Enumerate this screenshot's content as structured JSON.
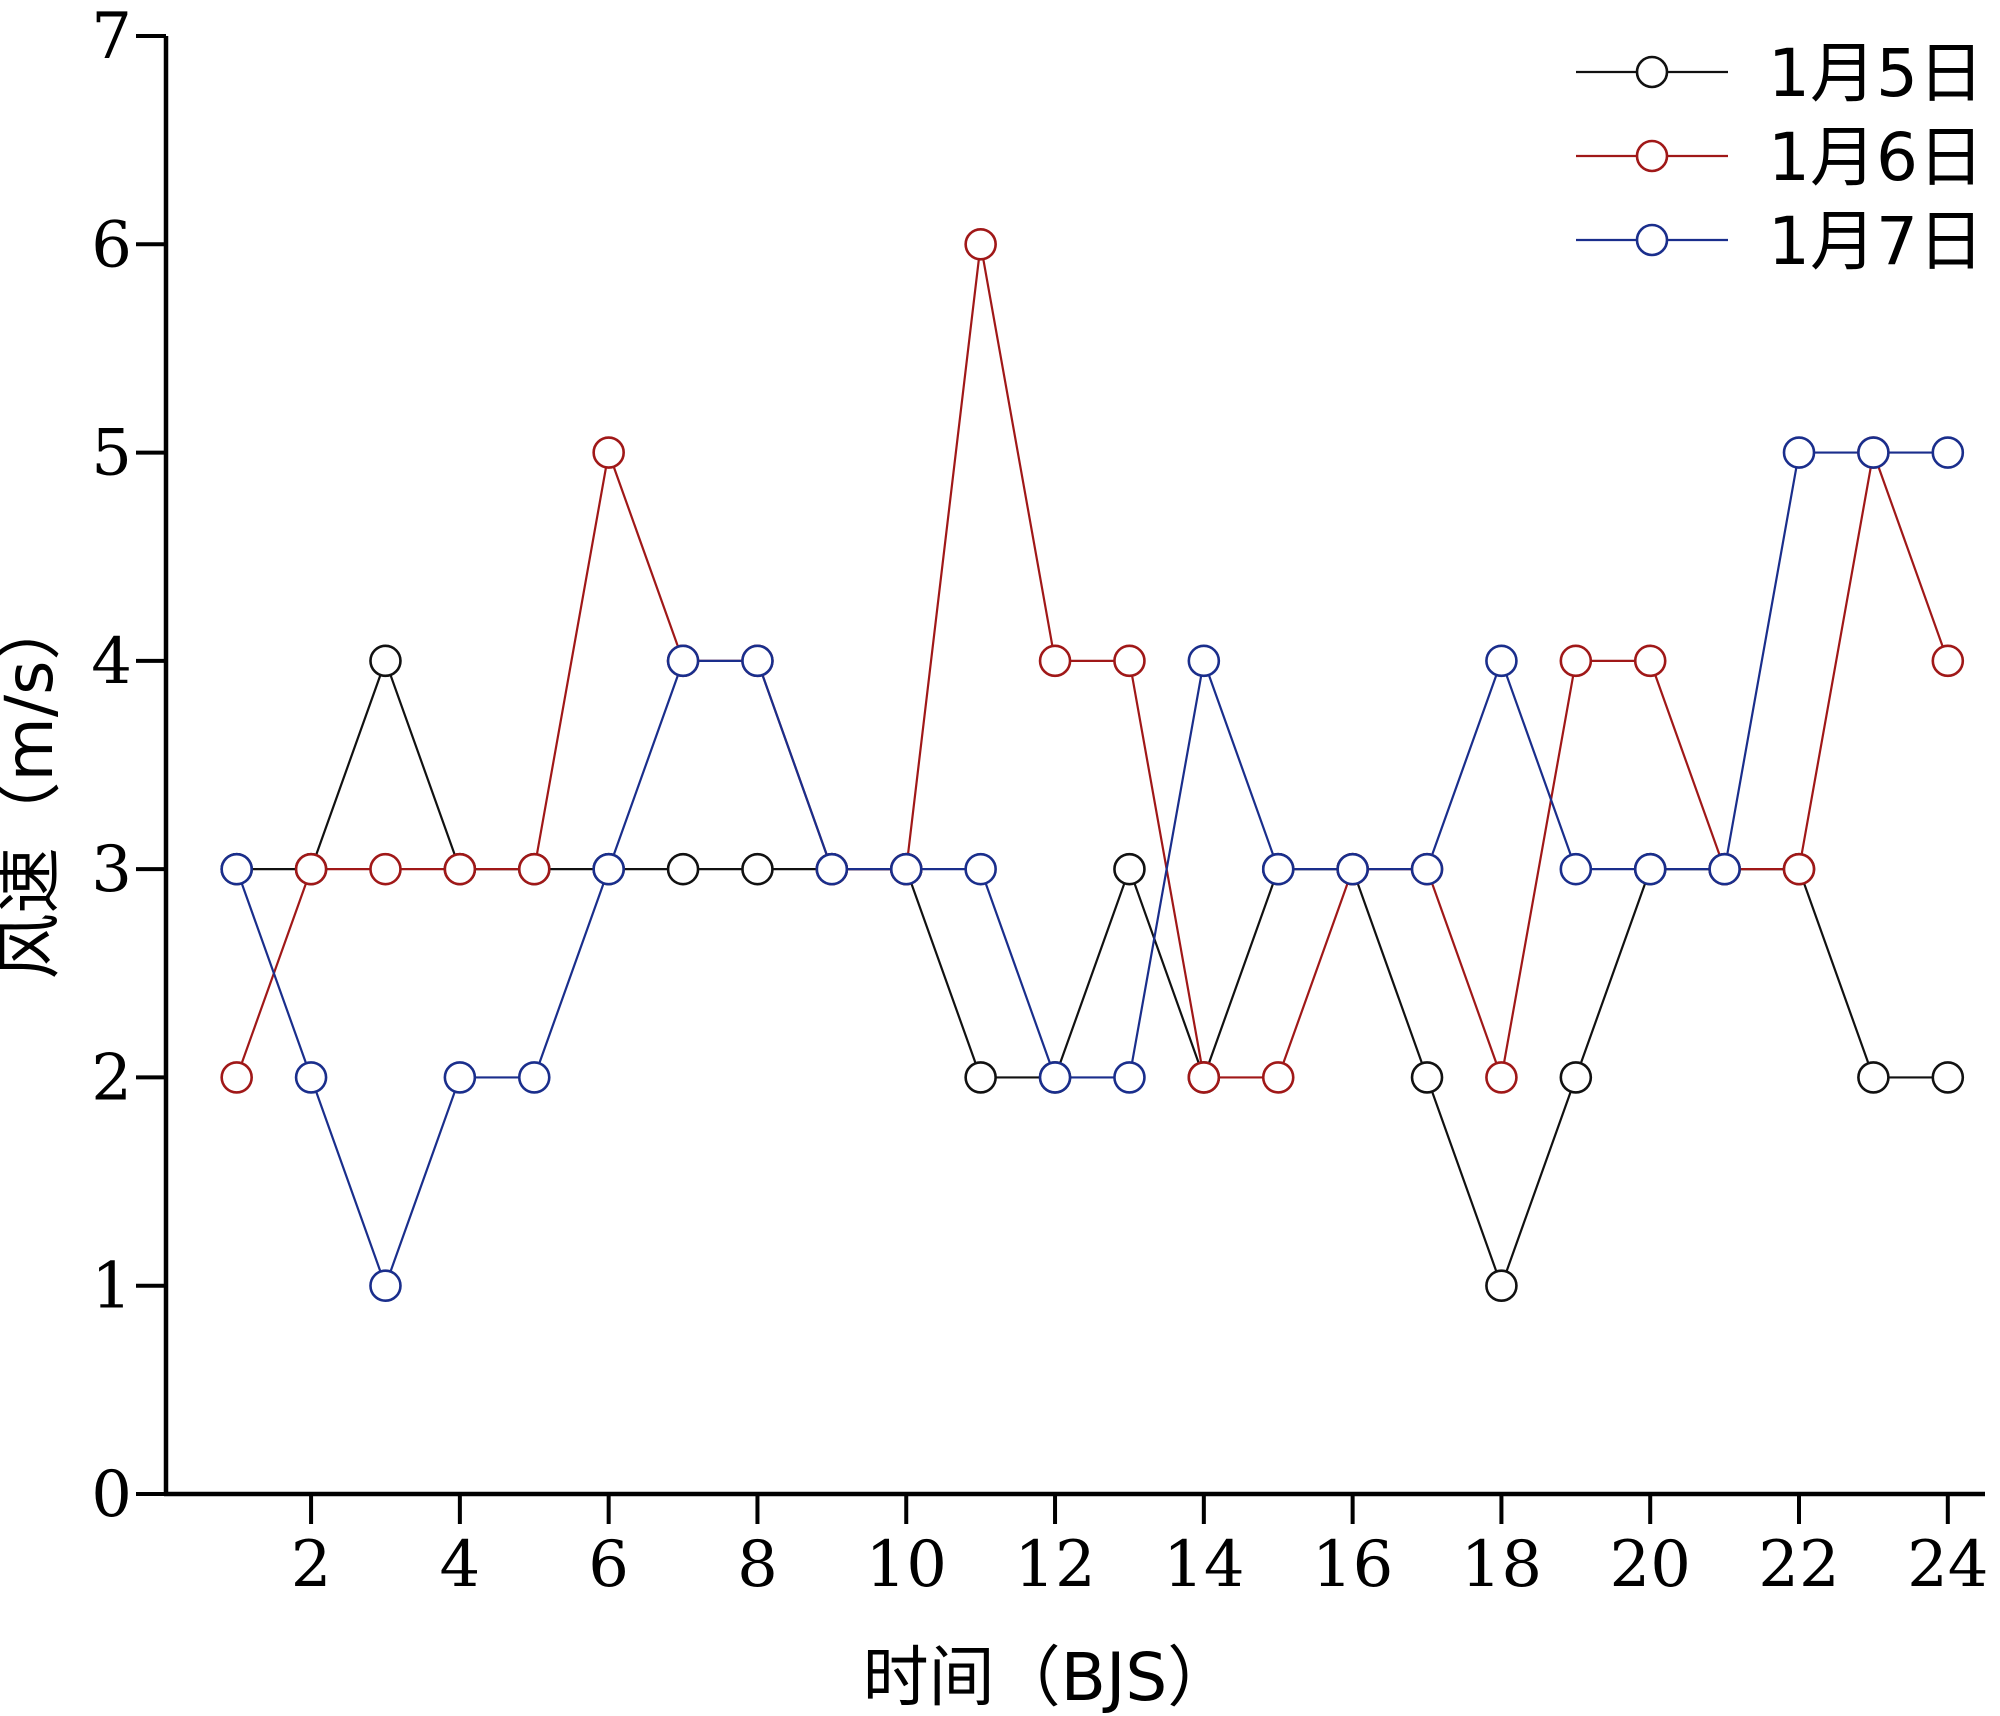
{
  "chart_data": {
    "type": "line",
    "xlabel": "时间（BJS）",
    "ylabel": "风速（m/s）",
    "xlim": [
      0.05,
      24.5
    ],
    "ylim": [
      0,
      7
    ],
    "x_ticks": [
      2,
      4,
      6,
      8,
      10,
      12,
      14,
      16,
      18,
      20,
      22,
      24
    ],
    "y_ticks": [
      0,
      1,
      2,
      3,
      4,
      5,
      6,
      7
    ],
    "legend_position": "top-right",
    "grid": false,
    "x": [
      1,
      2,
      3,
      4,
      5,
      6,
      7,
      8,
      9,
      10,
      11,
      12,
      13,
      14,
      15,
      16,
      17,
      18,
      19,
      20,
      21,
      22,
      23,
      24
    ],
    "series": [
      {
        "name": "1月5日",
        "color": "#111111",
        "values": [
          3,
          3,
          4,
          3,
          3,
          3,
          3,
          3,
          3,
          3,
          2,
          2,
          3,
          2,
          3,
          3,
          2,
          1,
          2,
          3,
          3,
          3,
          2,
          2
        ]
      },
      {
        "name": "1月6日",
        "color": "#a01818",
        "values": [
          2,
          3,
          3,
          3,
          3,
          5,
          4,
          4,
          3,
          3,
          6,
          4,
          4,
          2,
          2,
          3,
          3,
          2,
          4,
          4,
          3,
          3,
          5,
          4
        ]
      },
      {
        "name": "1月7日",
        "color": "#1a2e8c",
        "values": [
          3,
          2,
          1,
          2,
          2,
          3,
          4,
          4,
          3,
          3,
          3,
          2,
          2,
          4,
          3,
          3,
          3,
          4,
          3,
          3,
          3,
          5,
          5,
          5
        ]
      }
    ]
  }
}
